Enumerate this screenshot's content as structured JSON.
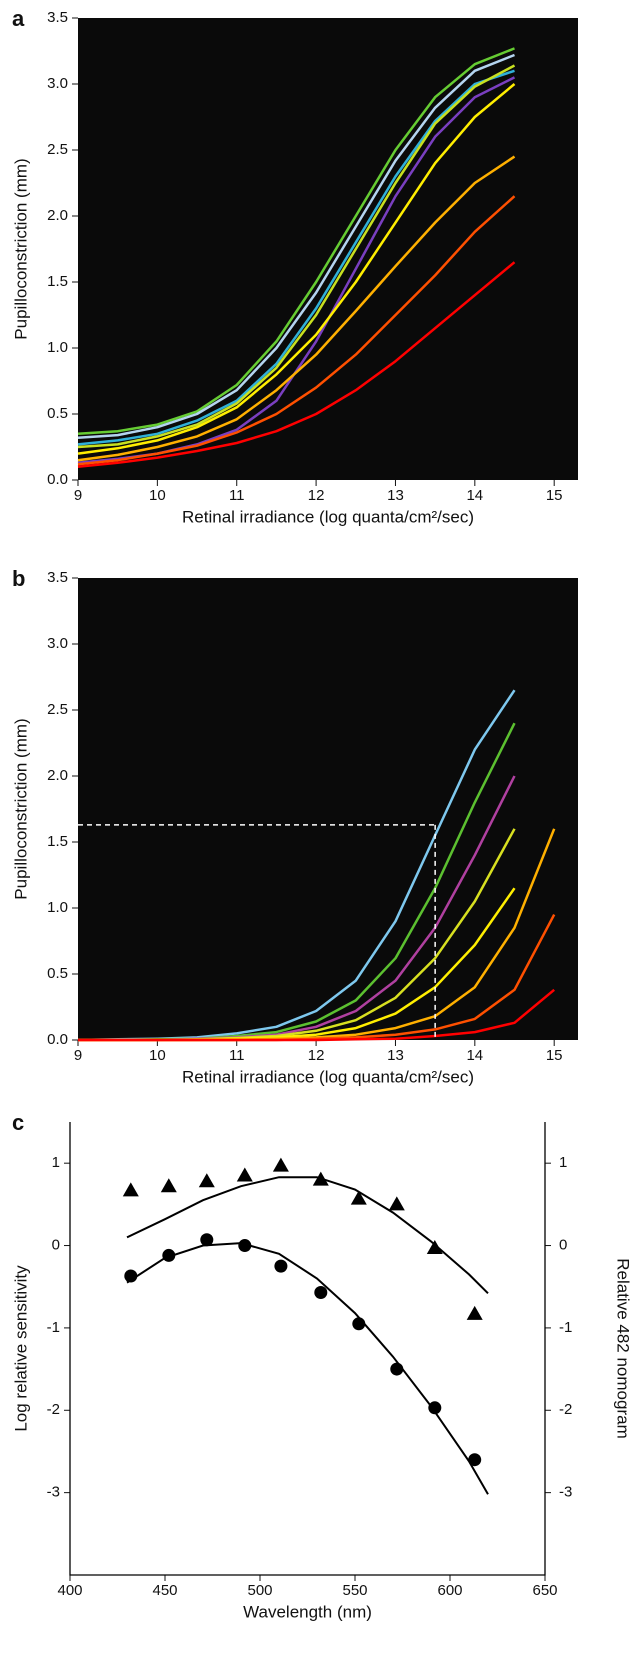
{
  "chart_data": [
    {
      "type": "line",
      "panel": "a",
      "background": "#0a0a0a",
      "x_label": "Retinal irradiance (log quanta/cm²/sec)",
      "y_label": "Pupilloconstriction (mm)",
      "x": [
        9,
        9.5,
        10,
        10.5,
        11,
        11.5,
        12,
        12.5,
        13,
        13.5,
        14,
        14.5
      ],
      "series": [
        {
          "color": "#66cc33",
          "values": [
            0.35,
            0.37,
            0.42,
            0.52,
            0.72,
            1.05,
            1.5,
            2.0,
            2.5,
            2.9,
            3.15,
            3.27
          ]
        },
        {
          "color": "#b4d4f0",
          "values": [
            0.32,
            0.34,
            0.4,
            0.5,
            0.68,
            1.0,
            1.42,
            1.92,
            2.42,
            2.82,
            3.1,
            3.22
          ]
        },
        {
          "color": "#7a3fc0",
          "values": [
            0.13,
            0.16,
            0.2,
            0.27,
            0.38,
            0.6,
            1.05,
            1.6,
            2.15,
            2.6,
            2.9,
            3.05
          ]
        },
        {
          "color": "#30b0d8",
          "values": [
            0.27,
            0.3,
            0.35,
            0.45,
            0.6,
            0.88,
            1.3,
            1.8,
            2.3,
            2.72,
            3.0,
            3.1
          ]
        },
        {
          "color": "#c8e020",
          "values": [
            0.25,
            0.27,
            0.33,
            0.42,
            0.58,
            0.85,
            1.25,
            1.75,
            2.25,
            2.7,
            2.98,
            3.14
          ]
        },
        {
          "color": "#ffee00",
          "values": [
            0.2,
            0.24,
            0.3,
            0.4,
            0.55,
            0.8,
            1.1,
            1.5,
            1.95,
            2.4,
            2.75,
            3.0
          ]
        },
        {
          "color": "#ffb000",
          "values": [
            0.15,
            0.19,
            0.25,
            0.33,
            0.46,
            0.68,
            0.95,
            1.28,
            1.62,
            1.95,
            2.25,
            2.45
          ]
        },
        {
          "color": "#ff5000",
          "values": [
            0.12,
            0.15,
            0.2,
            0.26,
            0.36,
            0.5,
            0.7,
            0.95,
            1.25,
            1.55,
            1.88,
            2.15
          ]
        },
        {
          "color": "#ff0000",
          "values": [
            0.1,
            0.13,
            0.17,
            0.22,
            0.28,
            0.37,
            0.5,
            0.68,
            0.9,
            1.15,
            1.4,
            1.65
          ]
        }
      ],
      "xlim": [
        9,
        15.3
      ],
      "xticks": [
        9,
        10,
        11,
        12,
        13,
        14,
        15
      ],
      "ylim": [
        0,
        3.5
      ],
      "yticks": [
        {
          "value": 0,
          "label": "0.0"
        },
        0.5,
        {
          "value": 1,
          "label": "1.0"
        },
        1.5,
        {
          "value": 2,
          "label": "2.0"
        },
        2.5,
        {
          "value": 3,
          "label": "3.0"
        },
        3.5
      ]
    },
    {
      "type": "line",
      "panel": "b",
      "background": "#0a0a0a",
      "x_label": "Retinal irradiance (log quanta/cm²/sec)",
      "y_label": "Pupilloconstriction (mm)",
      "x": [
        9,
        9.5,
        10,
        10.5,
        11,
        11.5,
        12,
        12.5,
        13,
        13.5,
        14,
        14.5,
        15
      ],
      "series": [
        {
          "color": "#7ec8ee",
          "values": [
            0,
            0.005,
            0.01,
            0.02,
            0.05,
            0.1,
            0.22,
            0.45,
            0.9,
            1.55,
            2.2,
            2.65,
            null
          ]
        },
        {
          "color": "#5cc030",
          "values": [
            0,
            0,
            0.005,
            0.01,
            0.03,
            0.06,
            0.14,
            0.3,
            0.62,
            1.15,
            1.8,
            2.4,
            null
          ]
        },
        {
          "color": "#b040a0",
          "values": [
            0,
            0,
            0,
            0.01,
            0.02,
            0.04,
            0.1,
            0.22,
            0.45,
            0.85,
            1.4,
            2.0,
            null
          ]
        },
        {
          "color": "#d8e020",
          "values": [
            0,
            0,
            0,
            0.005,
            0.015,
            0.03,
            0.07,
            0.15,
            0.32,
            0.62,
            1.05,
            1.6,
            null
          ]
        },
        {
          "color": "#ffee00",
          "values": [
            0,
            0,
            0,
            0,
            0.01,
            0.02,
            0.04,
            0.09,
            0.2,
            0.4,
            0.72,
            1.15,
            null
          ]
        },
        {
          "color": "#ffb000",
          "values": [
            0,
            0,
            0,
            0,
            0,
            0.01,
            0.02,
            0.04,
            0.09,
            0.18,
            0.4,
            0.85,
            1.6
          ]
        },
        {
          "color": "#ff5000",
          "values": [
            0,
            0,
            0,
            0,
            0,
            0,
            0.01,
            0.02,
            0.04,
            0.08,
            0.16,
            0.38,
            0.95
          ]
        },
        {
          "color": "#ff0000",
          "values": [
            0,
            0,
            0,
            0,
            0,
            0,
            0,
            0.005,
            0.01,
            0.03,
            0.06,
            0.13,
            0.38
          ]
        }
      ],
      "marker": {
        "x": 13.5,
        "y": 1.63,
        "color": "#ffffff"
      },
      "xlim": [
        9,
        15.3
      ],
      "xticks": [
        9,
        10,
        11,
        12,
        13,
        14,
        15
      ],
      "ylim": [
        0,
        3.5
      ],
      "yticks": [
        {
          "value": 0,
          "label": "0.0"
        },
        0.5,
        {
          "value": 1,
          "label": "1.0"
        },
        1.5,
        {
          "value": 2,
          "label": "2.0"
        },
        2.5,
        {
          "value": 3,
          "label": "3.0"
        },
        3.5
      ]
    },
    {
      "type": "scatter",
      "panel": "c",
      "color": "#000000",
      "x_label": "Wavelength (nm)",
      "y_label": "Log relative sensitivity",
      "y2_label": "Relative 482 nomogram",
      "x": [
        432,
        452,
        472,
        492,
        511,
        532,
        552,
        572,
        592,
        613
      ],
      "series": [
        {
          "marker": "triangle",
          "axis": "y2",
          "values": [
            0.67,
            0.72,
            0.78,
            0.85,
            0.97,
            0.8,
            0.57,
            0.5,
            -0.03,
            -0.83
          ]
        },
        {
          "marker": "circle",
          "values": [
            -0.37,
            -0.12,
            0.07,
            0,
            -0.25,
            -0.57,
            -0.95,
            -1.5,
            -1.97,
            -2.6
          ]
        }
      ],
      "fit_x": [
        430,
        450,
        470,
        490,
        510,
        530,
        550,
        570,
        590,
        610,
        620
      ],
      "fits": [
        {
          "axis": "y2",
          "values": [
            0.1,
            0.32,
            0.55,
            0.72,
            0.83,
            0.83,
            0.68,
            0.4,
            0.05,
            -0.35,
            -0.58
          ]
        },
        {
          "values": [
            -0.45,
            -0.15,
            0.0,
            0.03,
            -0.1,
            -0.4,
            -0.82,
            -1.35,
            -1.95,
            -2.62,
            -3.02
          ]
        }
      ],
      "xlim": [
        400,
        650
      ],
      "xticks": [
        400,
        450,
        500,
        550,
        600,
        650
      ],
      "ylim": [
        -4,
        1.5
      ],
      "yticks": [
        1,
        0,
        -1,
        -2,
        -3
      ],
      "y2lim": [
        -4,
        1.5
      ],
      "y2ticks": [
        1,
        0,
        -1,
        -2,
        -3
      ]
    }
  ]
}
